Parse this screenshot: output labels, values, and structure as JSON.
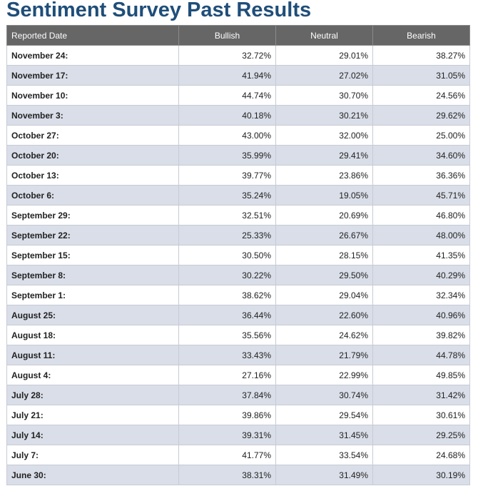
{
  "title": "Sentiment Survey Past Results",
  "table": {
    "headers": [
      "Reported Date",
      "Bullish",
      "Neutral",
      "Bearish"
    ],
    "rows": [
      [
        "November 24:",
        "32.72%",
        "29.01%",
        "38.27%"
      ],
      [
        "November 17:",
        "41.94%",
        "27.02%",
        "31.05%"
      ],
      [
        "November 10:",
        "44.74%",
        "30.70%",
        "24.56%"
      ],
      [
        "November 3:",
        "40.18%",
        "30.21%",
        "29.62%"
      ],
      [
        "October 27:",
        "43.00%",
        "32.00%",
        "25.00%"
      ],
      [
        "October 20:",
        "35.99%",
        "29.41%",
        "34.60%"
      ],
      [
        "October 13:",
        "39.77%",
        "23.86%",
        "36.36%"
      ],
      [
        "October 6:",
        "35.24%",
        "19.05%",
        "45.71%"
      ],
      [
        "September 29:",
        "32.51%",
        "20.69%",
        "46.80%"
      ],
      [
        "September 22:",
        "25.33%",
        "26.67%",
        "48.00%"
      ],
      [
        "September 15:",
        "30.50%",
        "28.15%",
        "41.35%"
      ],
      [
        "September 8:",
        "30.22%",
        "29.50%",
        "40.29%"
      ],
      [
        "September 1:",
        "38.62%",
        "29.04%",
        "32.34%"
      ],
      [
        "August 25:",
        "36.44%",
        "22.60%",
        "40.96%"
      ],
      [
        "August 18:",
        "35.56%",
        "24.62%",
        "39.82%"
      ],
      [
        "August 11:",
        "33.43%",
        "21.79%",
        "44.78%"
      ],
      [
        "August 4:",
        "27.16%",
        "22.99%",
        "49.85%"
      ],
      [
        "July 28:",
        "37.84%",
        "30.74%",
        "31.42%"
      ],
      [
        "July 21:",
        "39.86%",
        "29.54%",
        "30.61%"
      ],
      [
        "July 14:",
        "39.31%",
        "31.45%",
        "29.25%"
      ],
      [
        "July 7:",
        "41.77%",
        "33.54%",
        "24.68%"
      ],
      [
        "June 30:",
        "38.31%",
        "31.49%",
        "30.19%"
      ]
    ]
  },
  "colors": {
    "title": "#1f4e79",
    "header_bg": "#666666",
    "row_alt_bg": "#d9dee8"
  }
}
